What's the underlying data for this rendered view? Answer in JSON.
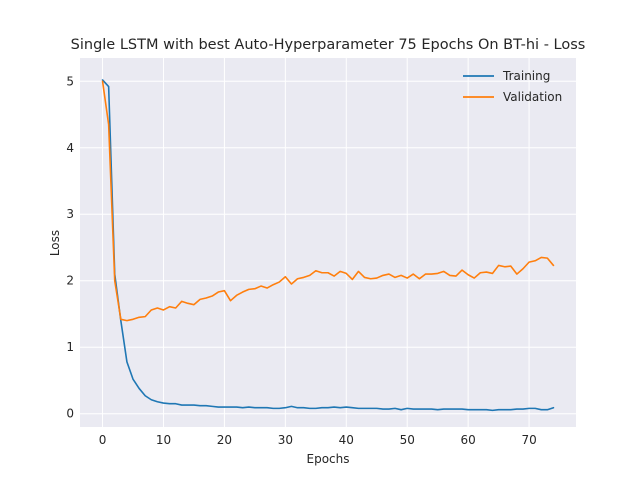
{
  "chart_data": {
    "type": "line",
    "title": "Single LSTM with best Auto-Hyperparameter 75 Epochs On BT-hi - Loss",
    "xlabel": "Epochs",
    "ylabel": "Loss",
    "xlim": [
      -3.7,
      77.7
    ],
    "ylim": [
      -0.2,
      5.35
    ],
    "xticks": [
      0,
      10,
      20,
      30,
      40,
      50,
      60,
      70
    ],
    "yticks": [
      0,
      1,
      2,
      3,
      4,
      5
    ],
    "grid": true,
    "legend_position": "upper right",
    "series": [
      {
        "name": "Training",
        "color": "#1f77b4",
        "values": [
          5.02,
          4.92,
          2.1,
          1.4,
          0.78,
          0.52,
          0.38,
          0.27,
          0.21,
          0.18,
          0.16,
          0.15,
          0.15,
          0.13,
          0.13,
          0.13,
          0.12,
          0.12,
          0.11,
          0.1,
          0.1,
          0.1,
          0.1,
          0.09,
          0.1,
          0.09,
          0.09,
          0.09,
          0.08,
          0.08,
          0.09,
          0.11,
          0.09,
          0.09,
          0.08,
          0.08,
          0.09,
          0.09,
          0.1,
          0.09,
          0.1,
          0.09,
          0.08,
          0.08,
          0.08,
          0.08,
          0.07,
          0.07,
          0.08,
          0.06,
          0.08,
          0.07,
          0.07,
          0.07,
          0.07,
          0.06,
          0.07,
          0.07,
          0.07,
          0.07,
          0.06,
          0.06,
          0.06,
          0.06,
          0.05,
          0.06,
          0.06,
          0.06,
          0.07,
          0.07,
          0.08,
          0.08,
          0.06,
          0.06,
          0.09
        ]
      },
      {
        "name": "Validation",
        "color": "#ff7f0e",
        "values": [
          5.0,
          4.35,
          2.0,
          1.42,
          1.4,
          1.42,
          1.45,
          1.46,
          1.56,
          1.59,
          1.56,
          1.61,
          1.59,
          1.69,
          1.66,
          1.64,
          1.72,
          1.74,
          1.77,
          1.83,
          1.85,
          1.7,
          1.78,
          1.83,
          1.87,
          1.88,
          1.92,
          1.89,
          1.94,
          1.98,
          2.06,
          1.95,
          2.03,
          2.05,
          2.08,
          2.15,
          2.12,
          2.12,
          2.07,
          2.14,
          2.11,
          2.02,
          2.14,
          2.05,
          2.03,
          2.04,
          2.08,
          2.1,
          2.05,
          2.08,
          2.04,
          2.1,
          2.03,
          2.1,
          2.1,
          2.11,
          2.14,
          2.08,
          2.07,
          2.16,
          2.09,
          2.04,
          2.12,
          2.13,
          2.11,
          2.23,
          2.21,
          2.22,
          2.1,
          2.18,
          2.28,
          2.3,
          2.35,
          2.34,
          2.23
        ]
      }
    ]
  }
}
